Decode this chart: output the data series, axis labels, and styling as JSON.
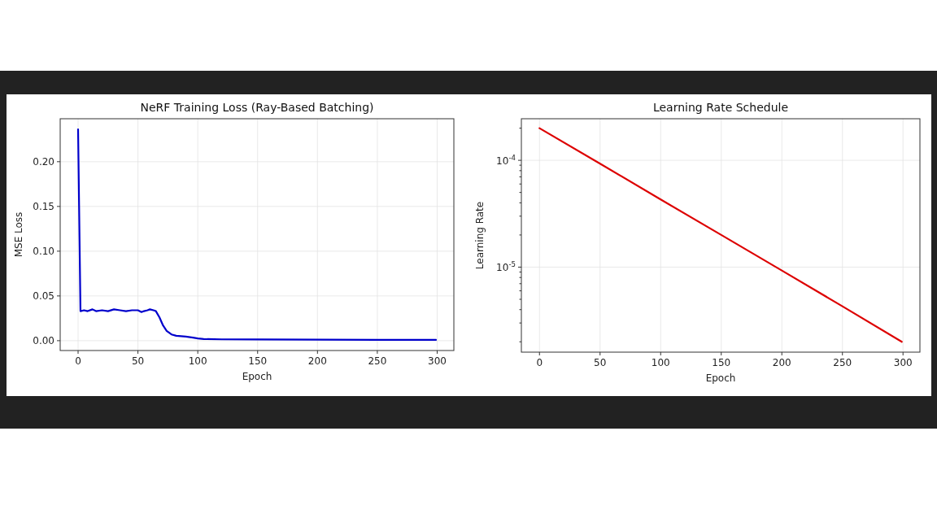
{
  "chart_data": [
    {
      "type": "line",
      "title": "NeRF Training Loss (Ray-Based Batching)",
      "xlabel": "Epoch",
      "ylabel": "MSE Loss",
      "xlim": [
        -14.95,
        313.95
      ],
      "ylim": [
        -0.011,
        0.248
      ],
      "xticks": [
        0,
        50,
        100,
        150,
        200,
        250,
        300
      ],
      "yticks": [
        {
          "value": 0,
          "label": "0.00"
        },
        {
          "value": 0.05,
          "label": "0.05"
        },
        {
          "value": 0.1,
          "label": "0.10"
        },
        {
          "value": 0.15,
          "label": "0.15"
        },
        {
          "value": 0.2,
          "label": "0.20"
        }
      ],
      "grid": true,
      "line_style": "solid",
      "series": [
        {
          "color": "#0000cc",
          "x": [
            0,
            2,
            5,
            8,
            12,
            15,
            20,
            25,
            30,
            35,
            40,
            45,
            50,
            53,
            55,
            58,
            60,
            63,
            65,
            68,
            71,
            74,
            78,
            82,
            90,
            96,
            100,
            105,
            120,
            150,
            200,
            250,
            299
          ],
          "values": [
            0.236,
            0.033,
            0.034,
            0.033,
            0.035,
            0.033,
            0.034,
            0.033,
            0.035,
            0.034,
            0.033,
            0.034,
            0.034,
            0.032,
            0.033,
            0.034,
            0.035,
            0.034,
            0.033,
            0.026,
            0.017,
            0.011,
            0.007,
            0.0055,
            0.0045,
            0.0035,
            0.0025,
            0.0018,
            0.0015,
            0.0013,
            0.0011,
            0.001,
            0.0009
          ]
        }
      ]
    },
    {
      "type": "line",
      "title": "Learning Rate Schedule",
      "xlabel": "Epoch",
      "ylabel": "Learning Rate",
      "log": "y",
      "xlim": [
        -14.95,
        313.95
      ],
      "ylim": [
        1.6e-06,
        0.000245
      ],
      "xticks": [
        0,
        50,
        100,
        150,
        200,
        250,
        300
      ],
      "yticks": [
        {
          "value": 2e-06,
          "label": null
        },
        {
          "value": 3e-06,
          "label": null
        },
        {
          "value": 4e-06,
          "label": null
        },
        {
          "value": 5e-06,
          "label": null
        },
        {
          "value": 6e-06,
          "label": null
        },
        {
          "value": 7e-06,
          "label": null
        },
        {
          "value": 8e-06,
          "label": null
        },
        {
          "value": 9e-06,
          "label": null
        },
        {
          "value": 1e-05,
          "label": "10$^{-5}$"
        },
        {
          "value": 2e-05,
          "label": null
        },
        {
          "value": 3e-05,
          "label": null
        },
        {
          "value": 4e-05,
          "label": null
        },
        {
          "value": 5e-05,
          "label": null
        },
        {
          "value": 6e-05,
          "label": null
        },
        {
          "value": 7e-05,
          "label": null
        },
        {
          "value": 8e-05,
          "label": null
        },
        {
          "value": 9e-05,
          "label": null
        },
        {
          "value": 0.0001,
          "label": "10$^{-4}$"
        },
        {
          "value": 0.0002,
          "label": null
        }
      ],
      "grid": true,
      "line_style": "solid",
      "series": [
        {
          "color": "#dd0000",
          "x": [
            0,
            50,
            100,
            150,
            200,
            250,
            299
          ],
          "values": [
            0.0002,
            9.3e-05,
            4.3e-05,
            2e-05,
            9.3e-06,
            4.3e-06,
            2e-06
          ]
        }
      ]
    }
  ]
}
